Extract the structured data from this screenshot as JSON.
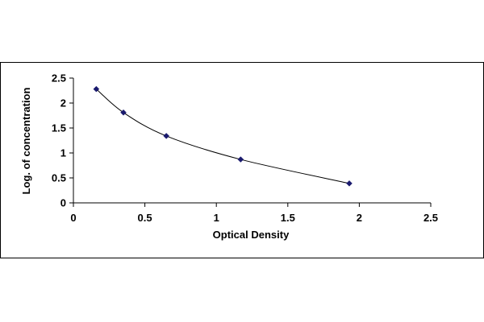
{
  "chart_data": {
    "type": "scatter",
    "title": "",
    "xlabel": "Optical Density",
    "ylabel": "Log. of concentration",
    "xlim": [
      0,
      2.5
    ],
    "ylim": [
      0,
      2.5
    ],
    "x_ticks": [
      "0",
      "0.5",
      "1",
      "1.5",
      "2",
      "2.5"
    ],
    "y_ticks": [
      "0",
      "0.5",
      "1",
      "1.5",
      "2",
      "2.5"
    ],
    "grid": false,
    "legend": "none",
    "marker": "diamond",
    "fit": "smooth curve",
    "series": [
      {
        "x": [
          0.16,
          0.35,
          0.65,
          1.17,
          1.93
        ],
        "y": [
          2.28,
          1.81,
          1.34,
          0.87,
          0.39
        ]
      }
    ],
    "colors": {
      "marker": "#1a1a6e",
      "line": "#000000",
      "frame": "#000000"
    }
  }
}
